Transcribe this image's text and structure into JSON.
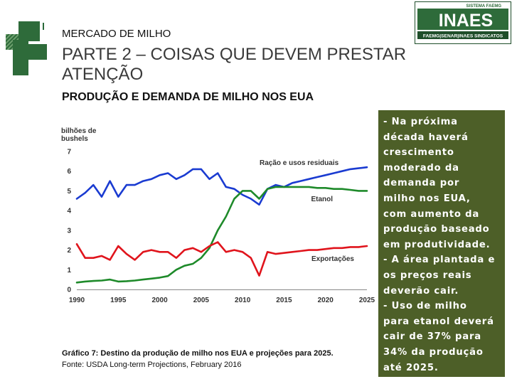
{
  "header": {
    "subtitle": "MERCADO DE MILHO",
    "title": "PARTE 2 – COISAS QUE DEVEM PRESTAR ATENÇÃO",
    "heading": "PRODUÇÃO E DEMANDA DE MILHO NOS EUA"
  },
  "logo": {
    "brand_top": "SISTEMA FAEMG",
    "brand_main": "INAES",
    "brand_bottom": "FAEMG|SENAR|INAES SINDICATOS",
    "colors": {
      "green": "#2e6b3a",
      "dark_green": "#1f4e2a"
    }
  },
  "colors": {
    "box_bg": "#4d5f28",
    "blue": "#1a3bd1",
    "green": "#1e8a2a",
    "red": "#e0141c"
  },
  "chart_data": {
    "type": "line",
    "ylabel_lines": [
      "bilhões de",
      "bushels"
    ],
    "ylim": [
      0,
      7
    ],
    "yticks": [
      "0",
      "1",
      "2",
      "3",
      "4",
      "5",
      "6",
      "7"
    ],
    "xlim": [
      1990,
      2025
    ],
    "xticks": [
      "1990",
      "1995",
      "2000",
      "2005",
      "2010",
      "2015",
      "2020",
      "2025"
    ],
    "series": [
      {
        "name": "Ração e usos residuais",
        "x": [
          1990,
          1991,
          1992,
          1993,
          1994,
          1995,
          1996,
          1997,
          1998,
          1999,
          2000,
          2001,
          2002,
          2003,
          2004,
          2005,
          2006,
          2007,
          2008,
          2009,
          2010,
          2011,
          2012,
          2013,
          2014,
          2015,
          2016,
          2017,
          2018,
          2019,
          2020,
          2021,
          2022,
          2023,
          2024,
          2025
        ],
        "y": [
          4.6,
          4.9,
          5.3,
          4.7,
          5.5,
          4.7,
          5.3,
          5.3,
          5.5,
          5.6,
          5.8,
          5.9,
          5.6,
          5.8,
          6.1,
          6.1,
          5.6,
          5.9,
          5.2,
          5.1,
          4.8,
          4.6,
          4.3,
          5.1,
          5.3,
          5.2,
          5.4,
          5.5,
          5.6,
          5.7,
          5.8,
          5.9,
          6.0,
          6.1,
          6.15,
          6.2
        ]
      },
      {
        "name": "Etanol",
        "x": [
          1990,
          1991,
          1992,
          1993,
          1994,
          1995,
          1996,
          1997,
          1998,
          1999,
          2000,
          2001,
          2002,
          2003,
          2004,
          2005,
          2006,
          2007,
          2008,
          2009,
          2010,
          2011,
          2012,
          2013,
          2014,
          2015,
          2016,
          2017,
          2018,
          2019,
          2020,
          2021,
          2022,
          2023,
          2024,
          2025
        ],
        "y": [
          0.35,
          0.4,
          0.43,
          0.45,
          0.5,
          0.4,
          0.42,
          0.45,
          0.5,
          0.55,
          0.6,
          0.68,
          1.0,
          1.2,
          1.3,
          1.6,
          2.1,
          3.0,
          3.7,
          4.6,
          5.0,
          5.0,
          4.6,
          5.1,
          5.2,
          5.2,
          5.2,
          5.2,
          5.2,
          5.15,
          5.15,
          5.1,
          5.1,
          5.05,
          5.0,
          5.0
        ]
      },
      {
        "name": "Exportações",
        "x": [
          1990,
          1991,
          1992,
          1993,
          1994,
          1995,
          1996,
          1997,
          1998,
          1999,
          2000,
          2001,
          2002,
          2003,
          2004,
          2005,
          2006,
          2007,
          2008,
          2009,
          2010,
          2011,
          2012,
          2013,
          2014,
          2015,
          2016,
          2017,
          2018,
          2019,
          2020,
          2021,
          2022,
          2023,
          2024,
          2025
        ],
        "y": [
          2.3,
          1.6,
          1.6,
          1.7,
          1.5,
          2.2,
          1.8,
          1.5,
          1.9,
          2.0,
          1.9,
          1.9,
          1.6,
          2.0,
          2.1,
          1.9,
          2.2,
          2.4,
          1.9,
          2.0,
          1.9,
          1.6,
          0.7,
          1.9,
          1.8,
          1.85,
          1.9,
          1.95,
          2.0,
          2.0,
          2.05,
          2.1,
          2.1,
          2.15,
          2.15,
          2.2
        ]
      }
    ]
  },
  "caption": "Gráfico 7: Destino da produção de milho nos EUA e projeções para 2025.",
  "source": "Fonte: USDA Long-term Projections, February 2016",
  "notes": [
    "- Na próxima",
    "década haverá",
    "crescimento",
    "moderado da",
    "demanda por",
    "milho nos EUA,",
    "com aumento da",
    "produção baseado",
    "em produtividade.",
    "- A área plantada e",
    "os preços reais",
    "deverão cair.",
    "- Uso de milho",
    "para etanol deverá",
    "cair de 37% para",
    "34% da produção",
    "até 2025."
  ]
}
